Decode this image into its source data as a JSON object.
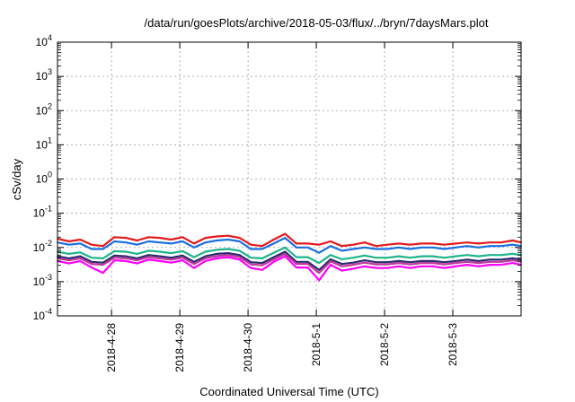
{
  "chart_data": {
    "type": "line",
    "title": "/data/run/goesPlots/archive/2018-05-03/flux/../bryn/7daysMars.plot",
    "xlabel": "Coordinated Universal Time (UTC)",
    "ylabel": "cSv/day",
    "y_scale": "log",
    "ylim": [
      0.0001,
      10000
    ],
    "xlim": [
      "2018-04-27 05:00",
      "2018-05-04 00:00"
    ],
    "grid": true,
    "y_ticks": [
      {
        "value": 0.0001,
        "base": "10",
        "exp": "-4"
      },
      {
        "value": 0.001,
        "base": "10",
        "exp": "-3"
      },
      {
        "value": 0.01,
        "base": "10",
        "exp": "-2"
      },
      {
        "value": 0.1,
        "base": "10",
        "exp": "-1"
      },
      {
        "value": 1,
        "base": "10",
        "exp": "0"
      },
      {
        "value": 10,
        "base": "10",
        "exp": "1"
      },
      {
        "value": 100,
        "base": "10",
        "exp": "2"
      },
      {
        "value": 1000,
        "base": "10",
        "exp": "3"
      },
      {
        "value": 10000,
        "base": "10",
        "exp": "4"
      }
    ],
    "x_ticks": [
      {
        "value": "2018-04-28",
        "label": "2018-4-28"
      },
      {
        "value": "2018-04-29",
        "label": "2018-4-29"
      },
      {
        "value": "2018-04-30",
        "label": "2018-4-30"
      },
      {
        "value": "2018-05-01",
        "label": "2018-5-1"
      },
      {
        "value": "2018-05-02",
        "label": "2018-5-2"
      },
      {
        "value": "2018-05-03",
        "label": "2018-5-3"
      }
    ],
    "x": [
      "2018-04-27 05:00",
      "2018-04-27 09:00",
      "2018-04-27 13:00",
      "2018-04-27 17:00",
      "2018-04-27 21:00",
      "2018-04-28 01:00",
      "2018-04-28 05:00",
      "2018-04-28 09:00",
      "2018-04-28 13:00",
      "2018-04-28 17:00",
      "2018-04-28 21:00",
      "2018-04-29 01:00",
      "2018-04-29 05:00",
      "2018-04-29 09:00",
      "2018-04-29 13:00",
      "2018-04-29 17:00",
      "2018-04-29 21:00",
      "2018-04-30 01:00",
      "2018-04-30 05:00",
      "2018-04-30 09:00",
      "2018-04-30 13:00",
      "2018-04-30 17:00",
      "2018-04-30 21:00",
      "2018-05-01 01:00",
      "2018-05-01 05:00",
      "2018-05-01 09:00",
      "2018-05-01 13:00",
      "2018-05-01 17:00",
      "2018-05-01 21:00",
      "2018-05-02 01:00",
      "2018-05-02 05:00",
      "2018-05-02 09:00",
      "2018-05-02 13:00",
      "2018-05-02 17:00",
      "2018-05-02 21:00",
      "2018-05-03 01:00",
      "2018-05-03 05:00",
      "2018-05-03 09:00",
      "2018-05-03 13:00",
      "2018-05-03 17:00",
      "2018-05-03 21:00",
      "2018-05-04 00:00"
    ],
    "series": [
      {
        "color": "#e41a1c",
        "values": [
          0.018,
          0.015,
          0.017,
          0.012,
          0.011,
          0.02,
          0.019,
          0.016,
          0.02,
          0.019,
          0.017,
          0.02,
          0.013,
          0.019,
          0.021,
          0.022,
          0.019,
          0.012,
          0.011,
          0.017,
          0.025,
          0.013,
          0.013,
          0.012,
          0.015,
          0.011,
          0.012,
          0.014,
          0.011,
          0.012,
          0.013,
          0.012,
          0.013,
          0.013,
          0.012,
          0.013,
          0.014,
          0.013,
          0.014,
          0.014,
          0.016,
          0.014
        ]
      },
      {
        "color": "#1a6fe0",
        "values": [
          0.014,
          0.012,
          0.013,
          0.009,
          0.009,
          0.015,
          0.014,
          0.012,
          0.015,
          0.014,
          0.013,
          0.015,
          0.01,
          0.014,
          0.016,
          0.017,
          0.015,
          0.009,
          0.009,
          0.013,
          0.019,
          0.01,
          0.01,
          0.007,
          0.011,
          0.008,
          0.009,
          0.01,
          0.009,
          0.009,
          0.01,
          0.009,
          0.01,
          0.01,
          0.009,
          0.01,
          0.011,
          0.01,
          0.011,
          0.011,
          0.012,
          0.011
        ]
      },
      {
        "color": "#1fb58a",
        "values": [
          0.0075,
          0.0065,
          0.0072,
          0.005,
          0.0048,
          0.0078,
          0.0075,
          0.0065,
          0.008,
          0.0075,
          0.0068,
          0.0078,
          0.0052,
          0.0075,
          0.0085,
          0.009,
          0.008,
          0.005,
          0.0048,
          0.007,
          0.01,
          0.0052,
          0.0052,
          0.0035,
          0.006,
          0.0045,
          0.005,
          0.0058,
          0.005,
          0.005,
          0.0055,
          0.005,
          0.0055,
          0.0055,
          0.005,
          0.0055,
          0.006,
          0.0055,
          0.006,
          0.006,
          0.0065,
          0.006
        ]
      },
      {
        "color": "#2b2b6e",
        "values": [
          0.0055,
          0.0048,
          0.0055,
          0.0038,
          0.0036,
          0.0058,
          0.0055,
          0.0048,
          0.006,
          0.0055,
          0.005,
          0.0058,
          0.0038,
          0.0055,
          0.0065,
          0.0068,
          0.006,
          0.0037,
          0.0035,
          0.0052,
          0.0075,
          0.0038,
          0.0038,
          0.0022,
          0.0045,
          0.0033,
          0.0036,
          0.0042,
          0.0037,
          0.0037,
          0.004,
          0.0037,
          0.004,
          0.004,
          0.0037,
          0.004,
          0.0044,
          0.004,
          0.0044,
          0.0044,
          0.0048,
          0.0044
        ]
      },
      {
        "color": "#c0399b",
        "values": [
          0.0048,
          0.0042,
          0.0048,
          0.0033,
          0.0031,
          0.005,
          0.0048,
          0.0042,
          0.0052,
          0.0048,
          0.0044,
          0.005,
          0.0033,
          0.0048,
          0.0056,
          0.006,
          0.0052,
          0.0032,
          0.003,
          0.0045,
          0.0065,
          0.0033,
          0.0033,
          0.0018,
          0.0039,
          0.0028,
          0.0031,
          0.0036,
          0.0032,
          0.0032,
          0.0035,
          0.0032,
          0.0035,
          0.0035,
          0.0032,
          0.0035,
          0.0038,
          0.0035,
          0.0038,
          0.0038,
          0.0042,
          0.0038
        ]
      },
      {
        "color": "#ff00ff",
        "values": [
          0.004,
          0.0034,
          0.004,
          0.0026,
          0.0018,
          0.0042,
          0.004,
          0.0034,
          0.0044,
          0.004,
          0.0036,
          0.0042,
          0.0025,
          0.004,
          0.0048,
          0.0052,
          0.0044,
          0.0025,
          0.0022,
          0.0038,
          0.0055,
          0.0026,
          0.0026,
          0.0011,
          0.0031,
          0.0021,
          0.0024,
          0.0028,
          0.0025,
          0.0025,
          0.0028,
          0.0025,
          0.0028,
          0.0028,
          0.0025,
          0.0028,
          0.0031,
          0.0028,
          0.0031,
          0.0031,
          0.0035,
          0.0031
        ]
      }
    ]
  }
}
